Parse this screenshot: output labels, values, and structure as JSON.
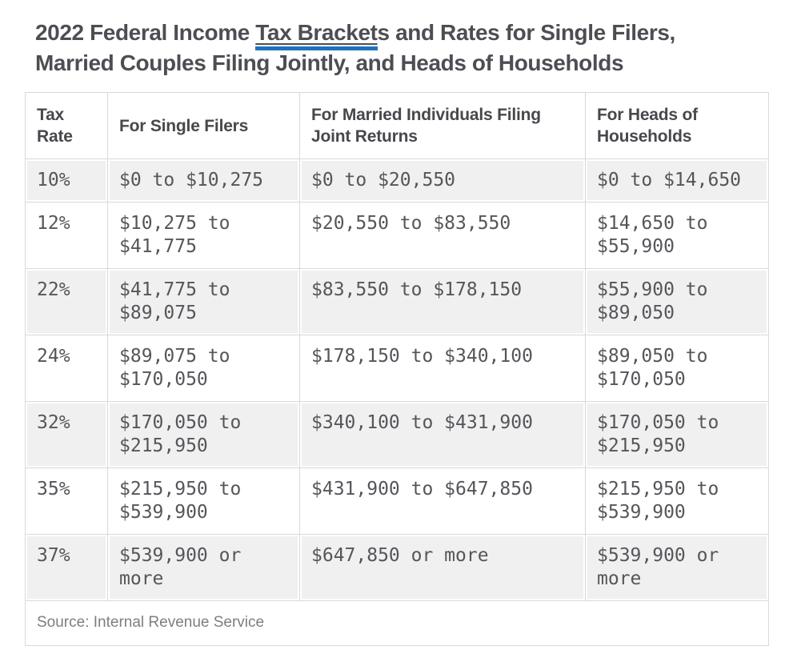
{
  "title": {
    "prefix": "2022 Federal Income ",
    "link": "Tax Bracket",
    "suffix_line1": "s and Rates for Single Filers,",
    "suffix_line2": "Married Couples Filing Jointly, and Heads of Households"
  },
  "table": {
    "headers": [
      "Tax Rate",
      "For Single Filers",
      "For Married Individuals Filing Joint Returns",
      "For Heads of Households"
    ],
    "rows": [
      {
        "rate": "10%",
        "single": "$0 to $10,275",
        "married": "$0 to $20,550",
        "hoh": "$0 to $14,650"
      },
      {
        "rate": "12%",
        "single": "$10,275 to $41,775",
        "married": "$20,550 to $83,550",
        "hoh": "$14,650 to $55,900"
      },
      {
        "rate": "22%",
        "single": "$41,775 to $89,075",
        "married": "$83,550 to $178,150",
        "hoh": "$55,900 to $89,050"
      },
      {
        "rate": "24%",
        "single": "$89,075 to $170,050",
        "married": "$178,150 to $340,100",
        "hoh": "$89,050 to $170,050"
      },
      {
        "rate": "32%",
        "single": "$170,050 to $215,950",
        "married": "$340,100 to $431,900",
        "hoh": "$170,050 to $215,950"
      },
      {
        "rate": "35%",
        "single": "$215,950 to $539,900",
        "married": "$431,900 to $647,850",
        "hoh": "$215,950 to $539,900"
      },
      {
        "rate": "37%",
        "single": "$539,900 or more",
        "married": "$647,850 or more",
        "hoh": "$539,900 or more"
      }
    ],
    "source": "Source: Internal Revenue Service"
  },
  "colors": {
    "accent_blue": "#1e73be",
    "stripe_background": "#f0f0f0",
    "table_border": "#d9d9d9",
    "title_text": "#4d4e53",
    "header_text": "#46484c",
    "cell_text": "#54565a",
    "source_text": "#7d7e82"
  }
}
